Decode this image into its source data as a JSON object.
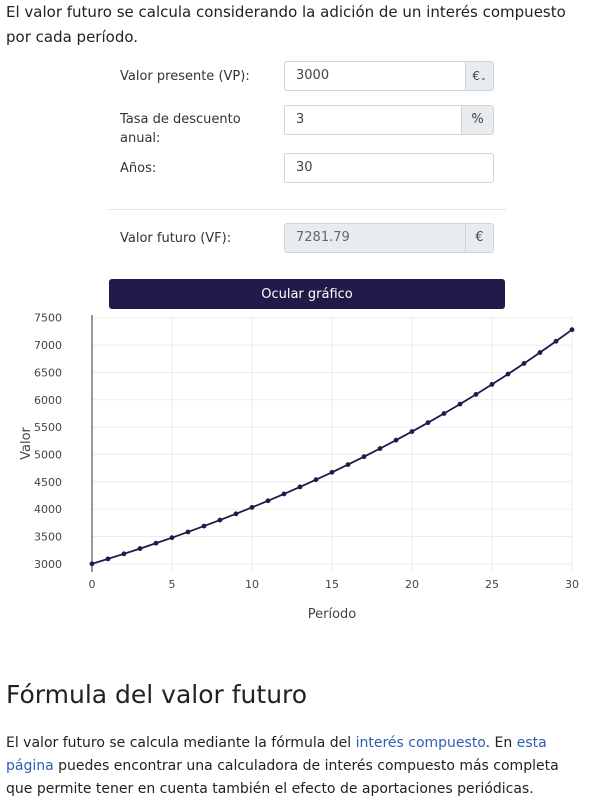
{
  "intro_text": "El valor futuro se calcula considerando la adición de un interés compuesto por cada período.",
  "form": {
    "present_value": {
      "label": "Valor presente (VP):",
      "value": "3000",
      "addon": "€"
    },
    "rate": {
      "label_line1": "Tasa de descuento",
      "label_line2": "anual:",
      "value": "3",
      "addon": "%"
    },
    "years": {
      "label": "Años:",
      "value": "30"
    },
    "future_value": {
      "label": "Valor futuro (VF):",
      "value": "7281.79",
      "addon": "€"
    }
  },
  "toggle_chart_button": "Ocular gráfico",
  "chart_data": {
    "type": "line",
    "xlabel": "Período",
    "ylabel": "Valor",
    "xlim": [
      0,
      30
    ],
    "ylim": [
      2850,
      7550
    ],
    "x_ticks": [
      "0",
      "5",
      "10",
      "15",
      "20",
      "25",
      "30"
    ],
    "y_ticks": [
      "3000",
      "3500",
      "4000",
      "4500",
      "5000",
      "5500",
      "6000",
      "6500",
      "7000",
      "7500"
    ],
    "grid": true,
    "color": "#1f1a4a",
    "x": [
      0,
      1,
      2,
      3,
      4,
      5,
      6,
      7,
      8,
      9,
      10,
      11,
      12,
      13,
      14,
      15,
      16,
      17,
      18,
      19,
      20,
      21,
      22,
      23,
      24,
      25,
      26,
      27,
      28,
      29,
      30
    ],
    "values": [
      3000,
      3090,
      3182.7,
      3278.18,
      3376.53,
      3477.82,
      3582.16,
      3689.62,
      3800.31,
      3914.32,
      4031.75,
      4152.7,
      4277.28,
      4405.6,
      4537.77,
      4673.9,
      4814.12,
      4958.54,
      5107.3,
      5260.52,
      5418.33,
      5580.88,
      5748.31,
      5920.76,
      6098.38,
      6281.33,
      6469.77,
      6663.86,
      6863.78,
      7069.69,
      7281.79
    ]
  },
  "section_heading": "Fórmula del valor futuro",
  "paragraph": {
    "text_before": "El valor futuro se calcula mediante la fórmula del ",
    "link1": "interés compuesto",
    "text_middle": ". En ",
    "link2": "esta página",
    "text_after": " puedes encontrar una calculadora de interés compuesto más completa que permite tener en cuenta también el efecto de aportaciones periódicas."
  }
}
